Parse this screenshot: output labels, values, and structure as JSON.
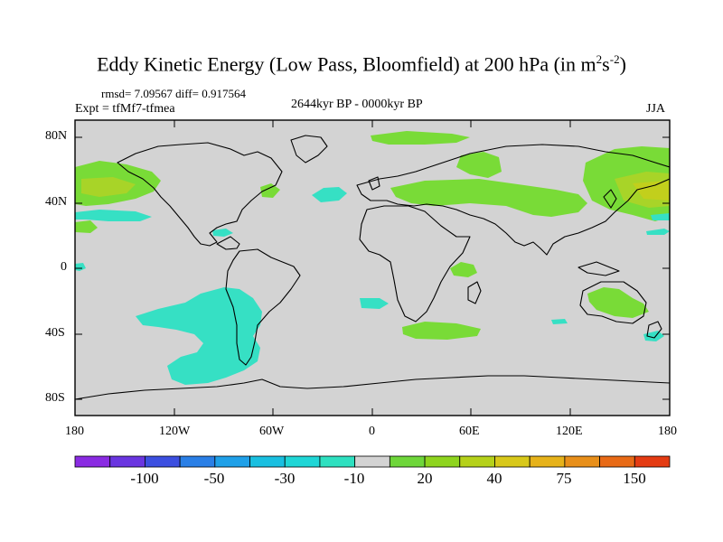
{
  "title": {
    "main": "Eddy Kinetic Energy (Low Pass, Bloomfield) at 200 hPa (in m",
    "sup1": "2",
    "mid": "s",
    "sup2": "-2",
    "end": ")"
  },
  "stats": "rmsd= 7.09567 diff= 0.917564",
  "experiment": "Expt = tfMf7-tfmea",
  "period": "2644kyr BP - 0000kyr BP",
  "season": "JJA",
  "lat_labels": [
    "80N",
    "40N",
    "0",
    "40S",
    "80S"
  ],
  "lon_labels": [
    "180",
    "120W",
    "60W",
    "0",
    "60E",
    "120E",
    "180"
  ],
  "colorbar": {
    "colors": [
      "#8a2be2",
      "#6a35e0",
      "#3c4fe0",
      "#2a7fe6",
      "#1fa0e8",
      "#19bfe0",
      "#1fd6d6",
      "#2ee0c0",
      "#d3d3d3",
      "#6ed63a",
      "#8ed41e",
      "#b5d11a",
      "#d8c81a",
      "#e6b21a",
      "#e88f1a",
      "#e86a16",
      "#e43b12"
    ],
    "labels": [
      "-100",
      "-50",
      "-30",
      "-10",
      "20",
      "40",
      "75",
      "150"
    ]
  },
  "legend": {
    "negative_color": "#36e0c4",
    "positive_color": "#79db37",
    "land_color": "#d3d3d3"
  }
}
